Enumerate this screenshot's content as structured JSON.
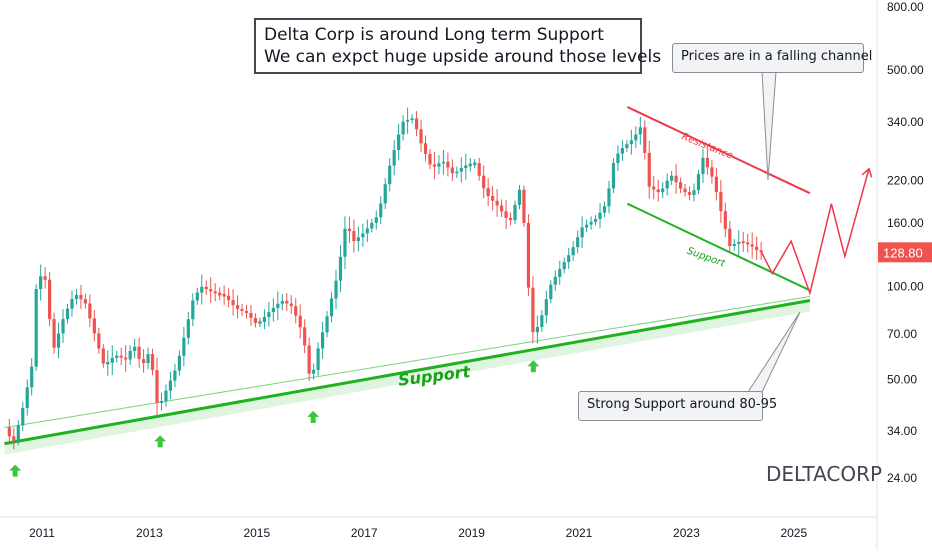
{
  "chart_data": {
    "type": "candlestick",
    "symbol": "DELTACORP",
    "scale": "log",
    "last_price": "128.80",
    "y_ticks": [
      "800.00",
      "500.00",
      "340.00",
      "220.00",
      "160.00",
      "100.00",
      "70.00",
      "50.00",
      "34.00",
      "24.00"
    ],
    "y_tick_values": [
      800,
      500,
      340,
      220,
      160,
      100,
      70,
      50,
      34,
      24
    ],
    "x_ticks": [
      "2011",
      "2013",
      "2015",
      "2017",
      "2019",
      "2021",
      "2023",
      "2025"
    ],
    "x_tick_values": [
      2011,
      2013,
      2015,
      2017,
      2019,
      2021,
      2023,
      2025
    ],
    "colors": {
      "up": "#26a69a",
      "down": "#ef5350",
      "support": "#22bb22",
      "resistance": "#f23645",
      "last_price_bg": "#ef5350"
    },
    "price_points": [
      [
        2010.35,
        35
      ],
      [
        2010.5,
        31
      ],
      [
        2010.65,
        38
      ],
      [
        2010.85,
        55
      ],
      [
        2010.95,
        110
      ],
      [
        2011.1,
        105
      ],
      [
        2011.25,
        62
      ],
      [
        2011.45,
        80
      ],
      [
        2011.65,
        95
      ],
      [
        2011.85,
        88
      ],
      [
        2012.0,
        72
      ],
      [
        2012.2,
        55
      ],
      [
        2012.4,
        60
      ],
      [
        2012.6,
        58
      ],
      [
        2012.75,
        65
      ],
      [
        2012.9,
        55
      ],
      [
        2013.05,
        62
      ],
      [
        2013.2,
        40
      ],
      [
        2013.35,
        46
      ],
      [
        2013.55,
        55
      ],
      [
        2013.7,
        70
      ],
      [
        2013.85,
        90
      ],
      [
        2014.0,
        100
      ],
      [
        2014.25,
        95
      ],
      [
        2014.45,
        93
      ],
      [
        2014.65,
        85
      ],
      [
        2014.85,
        82
      ],
      [
        2015.05,
        75
      ],
      [
        2015.25,
        82
      ],
      [
        2015.5,
        90
      ],
      [
        2015.7,
        86
      ],
      [
        2015.9,
        70
      ],
      [
        2016.05,
        48
      ],
      [
        2016.15,
        60
      ],
      [
        2016.35,
        80
      ],
      [
        2016.55,
        110
      ],
      [
        2016.7,
        160
      ],
      [
        2016.85,
        140
      ],
      [
        2017.05,
        150
      ],
      [
        2017.3,
        170
      ],
      [
        2017.5,
        240
      ],
      [
        2017.75,
        340
      ],
      [
        2017.95,
        350
      ],
      [
        2018.1,
        290
      ],
      [
        2018.3,
        240
      ],
      [
        2018.5,
        255
      ],
      [
        2018.7,
        230
      ],
      [
        2018.9,
        245
      ],
      [
        2019.1,
        250
      ],
      [
        2019.3,
        200
      ],
      [
        2019.55,
        180
      ],
      [
        2019.75,
        160
      ],
      [
        2019.95,
        210
      ],
      [
        2020.05,
        140
      ],
      [
        2020.15,
        70
      ],
      [
        2020.3,
        75
      ],
      [
        2020.5,
        100
      ],
      [
        2020.7,
        115
      ],
      [
        2020.9,
        130
      ],
      [
        2021.1,
        155
      ],
      [
        2021.35,
        165
      ],
      [
        2021.55,
        185
      ],
      [
        2021.7,
        260
      ],
      [
        2021.85,
        280
      ],
      [
        2022.05,
        300
      ],
      [
        2022.2,
        330
      ],
      [
        2022.35,
        210
      ],
      [
        2022.55,
        200
      ],
      [
        2022.75,
        230
      ],
      [
        2022.95,
        205
      ],
      [
        2023.15,
        195
      ],
      [
        2023.35,
        260
      ],
      [
        2023.55,
        220
      ],
      [
        2023.7,
        170
      ],
      [
        2023.85,
        135
      ],
      [
        2024.05,
        140
      ],
      [
        2024.25,
        135
      ],
      [
        2024.4,
        128.8
      ]
    ],
    "annotations": {
      "title_line1": "Delta Corp is around Long term Support",
      "title_line2": "We can expct huge upside around those levels",
      "channel_callout": "Prices are in a falling channel",
      "support_callout": "Strong Support around 80-95",
      "long_support_label": "Support",
      "channel_support_label": "Support",
      "channel_resistance_label": "Resistance"
    },
    "trendlines": {
      "long_support": {
        "from": [
          2010.3,
          31
        ],
        "to": [
          2025.3,
          90
        ]
      },
      "channel_resistance": {
        "from": [
          2021.9,
          380
        ],
        "to": [
          2025.3,
          200
        ]
      },
      "channel_support": {
        "from": [
          2021.9,
          185
        ],
        "to": [
          2025.3,
          97
        ]
      },
      "projection": [
        [
          2024.4,
          128.8
        ],
        [
          2024.6,
          110
        ],
        [
          2024.95,
          140
        ],
        [
          2025.3,
          95
        ],
        [
          2025.7,
          185
        ],
        [
          2025.95,
          125
        ],
        [
          2026.4,
          240
        ]
      ]
    },
    "support_touches": [
      2010.5,
      2013.2,
      2016.05,
      2020.15
    ]
  }
}
